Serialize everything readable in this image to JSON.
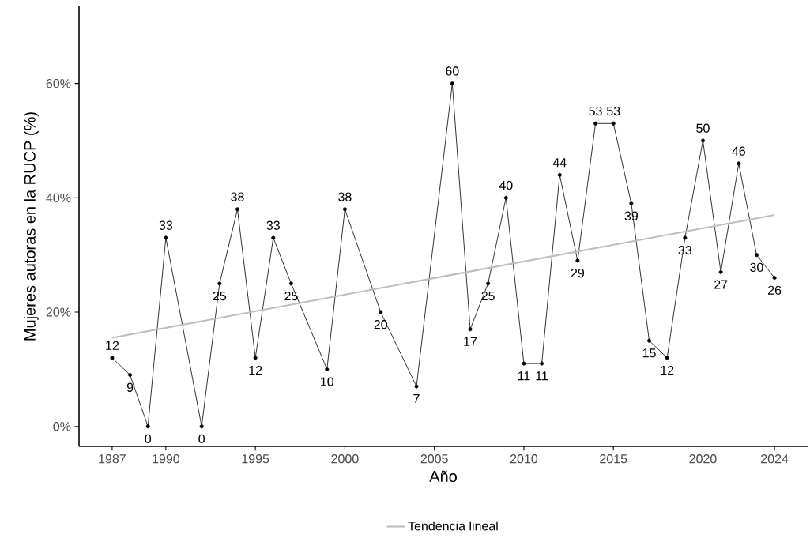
{
  "chart_data": {
    "type": "line",
    "xlabel": "Año",
    "ylabel": "Mujeres autoras en la RUCP (%)",
    "xlim": [
      1985.15,
      2025.85
    ],
    "ylim": [
      -3.5,
      73.5
    ],
    "xticks": [
      1987,
      1990,
      1995,
      2000,
      2005,
      2010,
      2015,
      2020,
      2024
    ],
    "yticks": [
      {
        "value": 0,
        "label": "0%"
      },
      {
        "value": 20,
        "label": "20%"
      },
      {
        "value": 40,
        "label": "40%"
      },
      {
        "value": 60,
        "label": "60%"
      }
    ],
    "grid": false,
    "legend": "bottom",
    "marker": "circle",
    "line_style": "solid",
    "series": [
      {
        "color": "#000000",
        "x": [
          1987,
          1988,
          1989,
          1990,
          1992,
          1993,
          1994,
          1995,
          1996,
          1997,
          1999,
          2000,
          2002,
          2004,
          2006,
          2007,
          2008,
          2009,
          2010,
          2011,
          2012,
          2013,
          2014,
          2015,
          2016,
          2017,
          2018,
          2019,
          2020,
          2021,
          2022,
          2023,
          2024
        ],
        "values": [
          12,
          9,
          0,
          33,
          0,
          25,
          38,
          12,
          33,
          25,
          10,
          38,
          20,
          7,
          60,
          17,
          25,
          40,
          11,
          11,
          44,
          29,
          53,
          53,
          39,
          15,
          12,
          33,
          50,
          27,
          46,
          30,
          26
        ],
        "value_labels": [
          "12",
          "9",
          "0",
          "33",
          "0",
          "25",
          "38",
          "12",
          "33",
          "25",
          "10",
          "38",
          "20",
          "7",
          "60",
          "17",
          "25",
          "40",
          "11",
          "11",
          "44",
          "29",
          "53",
          "53",
          "39",
          "15",
          "12",
          "33",
          "50",
          "27",
          "46",
          "30",
          "26"
        ]
      },
      {
        "name": "Tendencia lineal",
        "color": "#bebebe",
        "marker": "none",
        "x": [
          1987,
          2024
        ],
        "values": [
          15.5,
          37
        ]
      }
    ]
  }
}
